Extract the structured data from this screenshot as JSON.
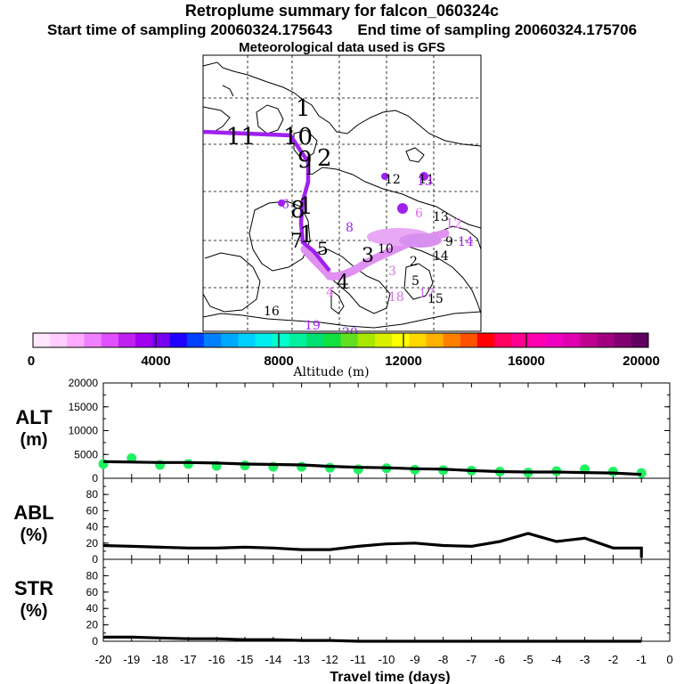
{
  "header": {
    "title": "Retroplume summary for falcon_060324c",
    "start_label": "Start time of sampling 20060324.175643",
    "end_label": "End time of sampling 20060324.175706",
    "met_label": "Meteorological data used is GFS"
  },
  "colorbar": {
    "ticks": [
      "0",
      "4000",
      "8000",
      "12000",
      "16000",
      "20000"
    ],
    "label": "Altitude (m)",
    "colors": [
      "#ffe8ff",
      "#ffcdff",
      "#ffaaff",
      "#f080ff",
      "#e050ff",
      "#c020f0",
      "#a000f0",
      "#7800f0",
      "#2000ff",
      "#0040ff",
      "#0080ff",
      "#00a8ff",
      "#00d0ff",
      "#00eeee",
      "#00ffcc",
      "#00f0a0",
      "#00e070",
      "#10e040",
      "#60e020",
      "#a8e800",
      "#d8f000",
      "#ffff00",
      "#ffd800",
      "#ffb000",
      "#ff8000",
      "#ff5000",
      "#ff0000",
      "#ff0060",
      "#ff0090",
      "#ff00b0",
      "#f000c0",
      "#e000b0",
      "#c00090",
      "#a00080",
      "#800070",
      "#600060"
    ]
  },
  "map": {
    "trajectory_numbers": [
      "1",
      "1",
      "1",
      "1",
      "2",
      "3",
      "4",
      "5",
      "6",
      "7",
      "8",
      "9",
      "10",
      "11",
      "12",
      "13",
      "14",
      "2",
      "3",
      "4",
      "5",
      "6",
      "7",
      "8",
      "9",
      "10",
      "11",
      "12",
      "13",
      "14",
      "15",
      "16",
      "17",
      "18",
      "19",
      "20"
    ],
    "colors": {
      "trajectory": "#a020f0",
      "plume": "#e090f0"
    }
  },
  "chart_data": [
    {
      "type": "scatter",
      "panel": "ALT",
      "ylabel": "ALT (m)",
      "ylim": [
        0,
        20000
      ],
      "yticks": [
        "0",
        "5000",
        "10000",
        "15000",
        "20000"
      ],
      "xlim": [
        -20,
        0
      ],
      "series": [
        {
          "name": "median altitude",
          "x": [
            -20,
            -19,
            -18,
            -17,
            -16,
            -15,
            -14,
            -13,
            -12,
            -11,
            -10,
            -9,
            -8,
            -7,
            -6,
            -5,
            -4,
            -3,
            -2,
            -1
          ],
          "values": [
            3500,
            3400,
            3300,
            3300,
            3200,
            3000,
            2900,
            2800,
            2500,
            2300,
            2200,
            2000,
            1900,
            1600,
            1400,
            1300,
            1300,
            1200,
            1100,
            800
          ]
        },
        {
          "name": "plume points",
          "x": [
            -20,
            -19,
            -18,
            -17,
            -16,
            -15,
            -14,
            -13,
            -12,
            -11,
            -10,
            -9,
            -8,
            -7,
            -6,
            -5,
            -4,
            -3,
            -2,
            -1
          ],
          "values": [
            3000,
            4200,
            2800,
            3000,
            2600,
            2700,
            2400,
            2400,
            2200,
            1900,
            2100,
            1800,
            1700,
            1600,
            1400,
            1200,
            1500,
            1900,
            1400,
            1100
          ]
        }
      ]
    },
    {
      "type": "line",
      "panel": "ABL",
      "ylabel": "ABL (%)",
      "ylim": [
        0,
        100
      ],
      "yticks": [
        "0",
        "20",
        "40",
        "60",
        "80"
      ],
      "xlim": [
        -20,
        0
      ],
      "series": [
        {
          "name": "fraction in boundary layer",
          "x": [
            -20,
            -19,
            -18,
            -17,
            -16,
            -15,
            -14,
            -13,
            -12,
            -11,
            -10,
            -9,
            -8,
            -7,
            -6,
            -5,
            -4,
            -3,
            -2,
            -1
          ],
          "values": [
            17,
            16,
            15,
            14,
            14,
            15,
            14,
            12,
            12,
            16,
            19,
            20,
            17,
            16,
            22,
            32,
            22,
            26,
            14,
            14
          ]
        },
        {
          "name": "end",
          "x": [
            -1
          ],
          "values": [
            2
          ]
        }
      ]
    },
    {
      "type": "line",
      "panel": "STR",
      "ylabel": "STR (%)",
      "ylim": [
        0,
        100
      ],
      "yticks": [
        "0",
        "20",
        "40",
        "60",
        "80"
      ],
      "xlim": [
        -20,
        0
      ],
      "series": [
        {
          "name": "fraction in stratosphere",
          "x": [
            -20,
            -19,
            -18,
            -17,
            -16,
            -15,
            -14,
            -13,
            -12,
            -11,
            -10,
            -9,
            -8,
            -7,
            -6,
            -5,
            -4,
            -3,
            -2,
            -1
          ],
          "values": [
            5,
            5,
            4,
            3,
            3,
            2,
            2,
            1,
            1,
            0,
            0,
            0,
            0,
            0,
            0,
            0,
            0,
            0,
            0,
            0
          ]
        }
      ]
    }
  ],
  "xaxis": {
    "ticks": [
      "-20",
      "-19",
      "-18",
      "-17",
      "-16",
      "-15",
      "-14",
      "-13",
      "-12",
      "-11",
      "-10",
      "-9",
      "-8",
      "-7",
      "-6",
      "-5",
      "-4",
      "-3",
      "-2",
      "-1",
      "0"
    ],
    "label": "Travel time (days)"
  }
}
